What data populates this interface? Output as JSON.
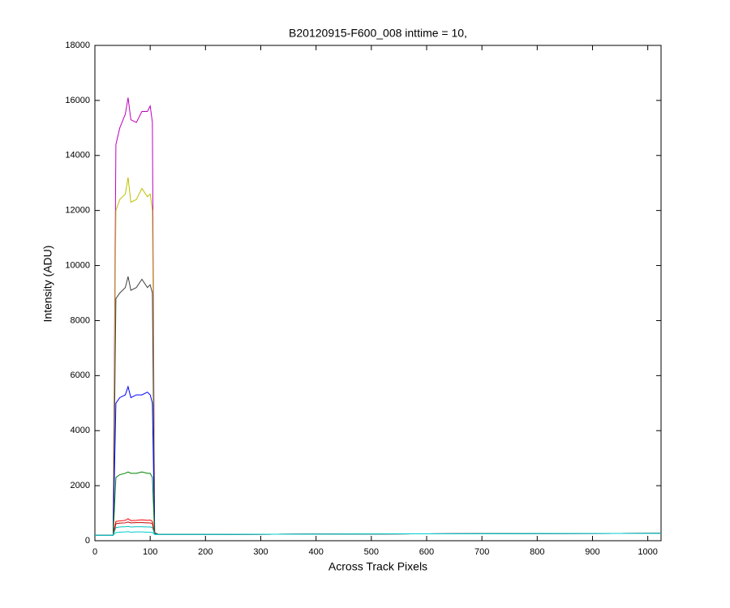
{
  "chart_data": {
    "type": "line",
    "title": "B20120915-F600_008 inttime = 10,",
    "x_label": "Across Track Pixels",
    "y_label": "Intensity (ADU)",
    "x": [
      0,
      20,
      33,
      38,
      45,
      55,
      60,
      65,
      75,
      85,
      95,
      100,
      104,
      108,
      115,
      200,
      400,
      600,
      800,
      1024
    ],
    "xlim": [
      0,
      1024
    ],
    "xticks": [
      0,
      100,
      200,
      300,
      400,
      500,
      600,
      700,
      800,
      900,
      1000
    ],
    "ylim": [
      0,
      18000
    ],
    "yticks": [
      0,
      2000,
      4000,
      6000,
      8000,
      10000,
      12000,
      14000,
      16000,
      18000
    ],
    "grid": false,
    "series": [
      {
        "color": "#bf00bf",
        "values": [
          200,
          200,
          200,
          14400,
          15000,
          15500,
          16100,
          15300,
          15200,
          15600,
          15600,
          15800,
          15200,
          300,
          230,
          230,
          240,
          250,
          260,
          270
        ]
      },
      {
        "color": "#bfbf00",
        "values": [
          200,
          200,
          200,
          12000,
          12400,
          12600,
          13200,
          12300,
          12400,
          12800,
          12500,
          12600,
          12000,
          300,
          230,
          230,
          240,
          250,
          260,
          270
        ]
      },
      {
        "color": "#404040",
        "values": [
          200,
          200,
          200,
          8800,
          9000,
          9200,
          9600,
          9100,
          9200,
          9500,
          9200,
          9300,
          9000,
          280,
          230,
          230,
          240,
          250,
          260,
          270
        ]
      },
      {
        "color": "#0000ff",
        "values": [
          200,
          200,
          200,
          5000,
          5200,
          5300,
          5600,
          5200,
          5300,
          5300,
          5400,
          5300,
          5000,
          260,
          230,
          230,
          240,
          250,
          260,
          270
        ]
      },
      {
        "color": "#008000",
        "values": [
          200,
          200,
          200,
          2300,
          2400,
          2450,
          2500,
          2450,
          2450,
          2500,
          2450,
          2450,
          2300,
          250,
          230,
          230,
          240,
          250,
          260,
          270
        ]
      },
      {
        "color": "#ff0000",
        "values": [
          200,
          200,
          200,
          700,
          720,
          740,
          800,
          730,
          740,
          760,
          740,
          750,
          700,
          240,
          230,
          230,
          240,
          250,
          260,
          270
        ]
      },
      {
        "color": "#bf0000",
        "values": [
          200,
          200,
          200,
          620,
          640,
          650,
          680,
          650,
          660,
          660,
          650,
          650,
          620,
          240,
          230,
          230,
          240,
          250,
          260,
          270
        ]
      },
      {
        "color": "#00bfbf",
        "values": [
          200,
          200,
          200,
          480,
          500,
          510,
          520,
          500,
          510,
          510,
          500,
          500,
          480,
          230,
          230,
          230,
          240,
          250,
          260,
          270
        ]
      },
      {
        "color": "#00cccc",
        "values": [
          200,
          200,
          200,
          300,
          310,
          320,
          330,
          310,
          320,
          320,
          310,
          310,
          300,
          230,
          230,
          230,
          240,
          250,
          260,
          270
        ]
      }
    ]
  }
}
